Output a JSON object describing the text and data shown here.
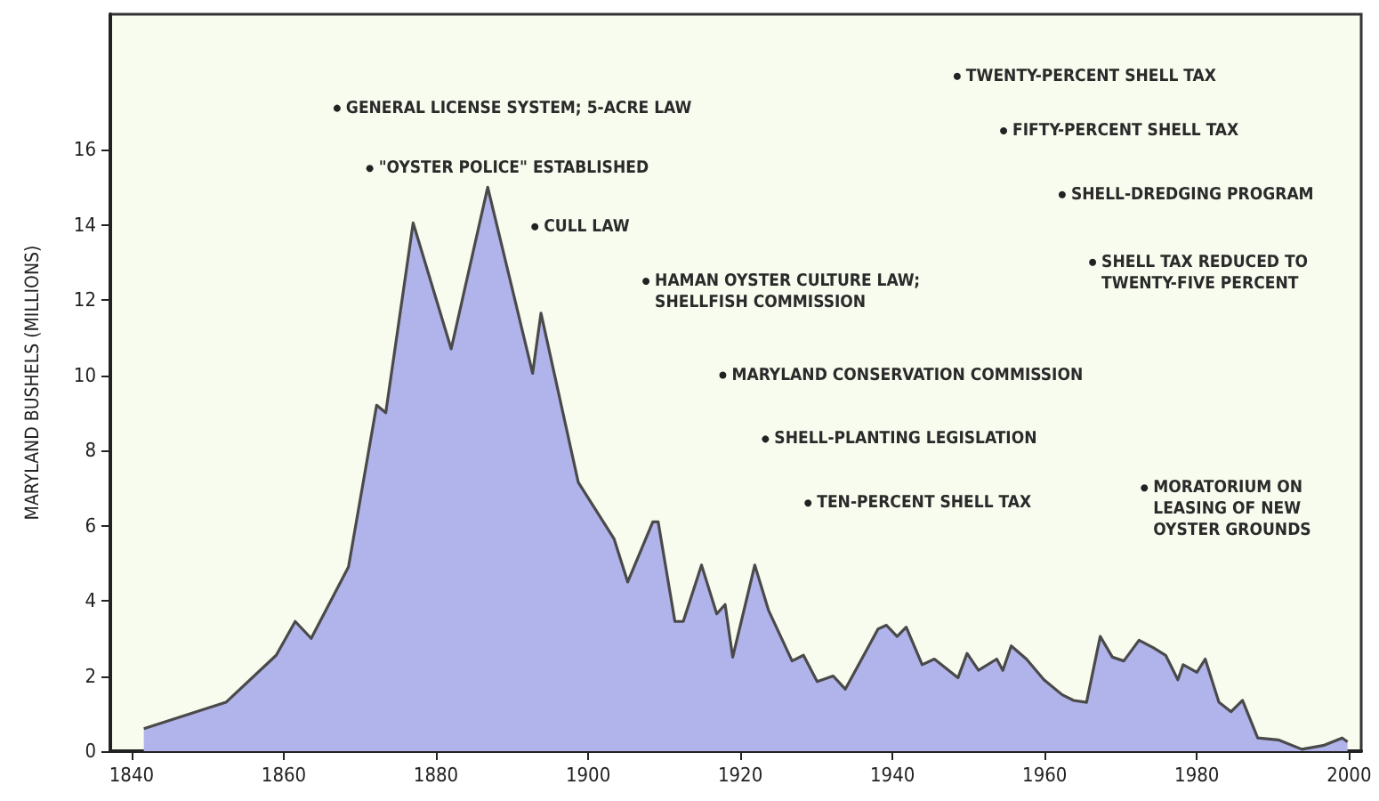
{
  "chart_data": {
    "type": "area",
    "ylabel": "MARYLAND BUSHELS (MILLIONS)",
    "x": [
      1841.6,
      1852.4,
      1859,
      1861.5,
      1863.6,
      1868.5,
      1872.2,
      1873.4,
      1877,
      1882,
      1886.8,
      1892.7,
      1893.8,
      1898.7,
      1903.4,
      1905.2,
      1908.5,
      1909.2,
      1911.4,
      1912.5,
      1914.9,
      1916.9,
      1918,
      1919,
      1921.9,
      1923.7,
      1926.8,
      1928.3,
      1930.1,
      1932.2,
      1933.8,
      1938.1,
      1939.2,
      1940.6,
      1941.8,
      1943.9,
      1945.5,
      1948.6,
      1949.8,
      1951.3,
      1953.7,
      1954.5,
      1955.6,
      1957.6,
      1959.9,
      1962.3,
      1963.8,
      1965.5,
      1967.3,
      1968.9,
      1970.4,
      1972.4,
      1974.3,
      1975.9,
      1977.5,
      1978.2,
      1980,
      1981.1,
      1982.9,
      1984.5,
      1986,
      1988,
      1990.7,
      1993.8,
      1996.6,
      1999.1,
      1999.8
    ],
    "series": [
      {
        "color": "#b0b4ea",
        "values": [
          0.6,
          1.3,
          2.55,
          3.45,
          3.0,
          4.9,
          9.2,
          9.0,
          14.05,
          10.7,
          15.0,
          10.05,
          11.65,
          7.15,
          5.65,
          4.5,
          6.1,
          6.1,
          3.45,
          3.45,
          4.95,
          3.65,
          3.9,
          2.5,
          4.95,
          3.75,
          2.4,
          2.55,
          1.85,
          2.0,
          1.65,
          3.25,
          3.35,
          3.05,
          3.3,
          2.3,
          2.45,
          1.95,
          2.6,
          2.15,
          2.45,
          2.15,
          2.8,
          2.45,
          1.9,
          1.5,
          1.35,
          1.3,
          3.05,
          2.5,
          2.4,
          2.95,
          2.75,
          2.55,
          1.9,
          2.3,
          2.1,
          2.45,
          1.3,
          1.05,
          1.35,
          0.35,
          0.3,
          0.05,
          0.15,
          0.35,
          0.25
        ]
      }
    ],
    "xlim": [
      1837.2,
      2001.6
    ],
    "xticks": [
      1840,
      1860,
      1880,
      1900,
      1920,
      1940,
      1960,
      1980,
      2000
    ],
    "ylim": [
      0,
      19.6
    ],
    "yticks": [
      0,
      2,
      4,
      6,
      8,
      10,
      12,
      14,
      16
    ],
    "grid": false,
    "annotations": [
      {
        "text": "GENERAL LICENSE SYSTEM; 5-ACRE LAW",
        "x": 1867,
        "y": 17.1
      },
      {
        "text": "\"OYSTER POLICE\" ESTABLISHED",
        "x": 1871.3,
        "y": 15.5
      },
      {
        "text": "CULL LAW",
        "x": 1893,
        "y": 13.95
      },
      {
        "text": "HAMAN OYSTER CULTURE LAW;\nSHELLFISH COMMISSION",
        "x": 1907.6,
        "y": 12.5
      },
      {
        "text": "MARYLAND CONSERVATION COMMISSION",
        "x": 1917.7,
        "y": 10
      },
      {
        "text": "SHELL-PLANTING LEGISLATION",
        "x": 1923.3,
        "y": 8.3
      },
      {
        "text": "TEN-PERCENT SHELL TAX",
        "x": 1928.9,
        "y": 6.6
      },
      {
        "text": "TWENTY-PERCENT SHELL TAX",
        "x": 1948.5,
        "y": 17.95
      },
      {
        "text": "FIFTY-PERCENT SHELL TAX",
        "x": 1954.6,
        "y": 16.5
      },
      {
        "text": "SHELL-DREDGING PROGRAM",
        "x": 1962.3,
        "y": 14.8
      },
      {
        "text": "SHELL TAX REDUCED TO\nTWENTY-FIVE PERCENT",
        "x": 1966.3,
        "y": 13
      },
      {
        "text": "MORATORIUM ON\nLEASING OF NEW\nOYSTER GROUNDS",
        "x": 1973.1,
        "y": 7
      }
    ]
  }
}
